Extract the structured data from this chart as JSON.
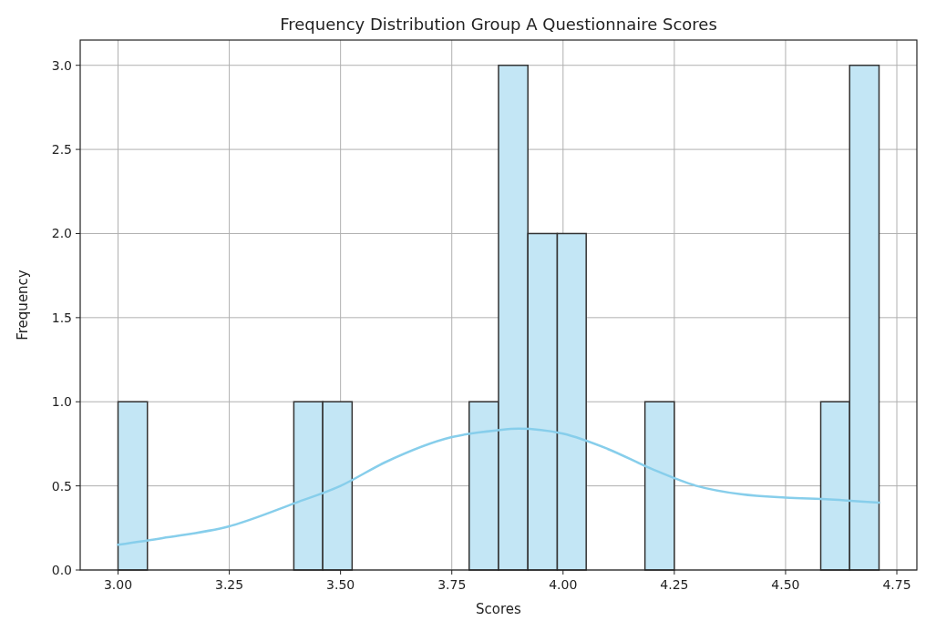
{
  "chart_data": {
    "type": "histogram",
    "title": "Frequency Distribution Group A Questionnaire Scores",
    "xlabel": "Scores",
    "ylabel": "Frequency",
    "bins": [
      3.0,
      3.066,
      3.132,
      3.197,
      3.263,
      3.329,
      3.395,
      3.46,
      3.526,
      3.592,
      3.658,
      3.723,
      3.789,
      3.855,
      3.921,
      3.987,
      4.052,
      4.118,
      4.184,
      4.25,
      4.315,
      4.381,
      4.447,
      4.513,
      4.579,
      4.644,
      4.71
    ],
    "values": [
      1,
      0,
      0,
      0,
      0,
      0,
      1,
      1,
      0,
      0,
      0,
      0,
      1,
      3,
      2,
      2,
      0,
      0,
      1,
      0,
      0,
      0,
      0,
      0,
      1,
      3
    ],
    "color": "#c3e6f5",
    "series": [
      {
        "type": "line",
        "color": "#87ceeb",
        "x": [
          3.0,
          3.1,
          3.25,
          3.4,
          3.5,
          3.6,
          3.75,
          3.85,
          3.9,
          4.0,
          4.1,
          4.2,
          4.3,
          4.4,
          4.5,
          4.6,
          4.71
        ],
        "values": [
          0.15,
          0.19,
          0.26,
          0.4,
          0.5,
          0.64,
          0.79,
          0.83,
          0.84,
          0.81,
          0.72,
          0.6,
          0.5,
          0.45,
          0.43,
          0.42,
          0.4
        ]
      }
    ],
    "xlim": [
      2.915,
      4.795
    ],
    "ylim": [
      0,
      3.15
    ],
    "xticks": [
      {
        "value": 3,
        "label": "3.00"
      },
      {
        "value": 3.25,
        "label": "3.25"
      },
      {
        "value": 3.5,
        "label": "3.50"
      },
      {
        "value": 3.75,
        "label": "3.75"
      },
      {
        "value": 4,
        "label": "4.00"
      },
      {
        "value": 4.25,
        "label": "4.25"
      },
      {
        "value": 4.5,
        "label": "4.50"
      },
      {
        "value": 4.75,
        "label": "4.75"
      }
    ],
    "yticks": [
      {
        "value": 0,
        "label": "0.0"
      },
      {
        "value": 0.5,
        "label": "0.5"
      },
      {
        "value": 1,
        "label": "1.0"
      },
      {
        "value": 1.5,
        "label": "1.5"
      },
      {
        "value": 2,
        "label": "2.0"
      },
      {
        "value": 2.5,
        "label": "2.5"
      },
      {
        "value": 3,
        "label": "3.0"
      }
    ],
    "grid": true
  }
}
